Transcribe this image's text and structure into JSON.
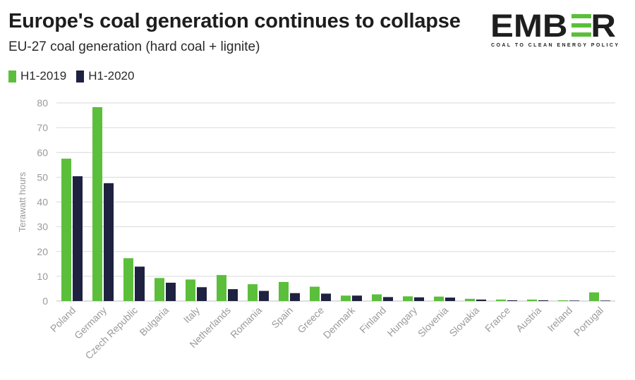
{
  "header": {
    "title": "Europe's coal generation continues to collapse",
    "subtitle": "EU-27 coal generation (hard coal + lignite)"
  },
  "logo": {
    "name": "EMBER",
    "tagline": "COAL TO CLEAN ENERGY POLICY",
    "colors": {
      "text": "#1e1e1e",
      "accent": "#5bbf3b"
    }
  },
  "colors": {
    "h1_2019": "#5bbf3b",
    "h1_2020": "#1f2140",
    "grid": "#d9d9d9",
    "axis_text": "#9a9a9a"
  },
  "chart_data": {
    "type": "bar",
    "title": "Europe's coal generation continues to collapse",
    "subtitle": "EU-27 coal generation (hard coal + lignite)",
    "xlabel": "",
    "ylabel": "Terawatt hours",
    "ylim": [
      0,
      80
    ],
    "yticks": [
      0,
      10,
      20,
      30,
      40,
      50,
      60,
      70,
      80
    ],
    "grid": true,
    "legend_position": "top-left",
    "categories": [
      "Poland",
      "Germany",
      "Czech Republic",
      "Bulgaria",
      "Italy",
      "Netherlands",
      "Romania",
      "Spain",
      "Greece",
      "Denmark",
      "Finland",
      "Hungary",
      "Slovenia",
      "Slovakia",
      "France",
      "Austria",
      "Ireland",
      "Portugal"
    ],
    "series": [
      {
        "name": "H1-2019",
        "color": "#5bbf3b",
        "values": [
          57.5,
          78.3,
          17.3,
          9.3,
          8.7,
          10.5,
          6.8,
          7.7,
          5.8,
          2.2,
          2.7,
          1.9,
          1.8,
          0.9,
          0.6,
          0.6,
          0.3,
          3.5
        ]
      },
      {
        "name": "H1-2020",
        "color": "#1f2140",
        "values": [
          50.4,
          47.6,
          13.9,
          7.4,
          5.6,
          4.8,
          4.1,
          3.2,
          3.0,
          2.2,
          1.6,
          1.5,
          1.4,
          0.6,
          0.3,
          0.3,
          0.2,
          0.2
        ]
      }
    ]
  }
}
